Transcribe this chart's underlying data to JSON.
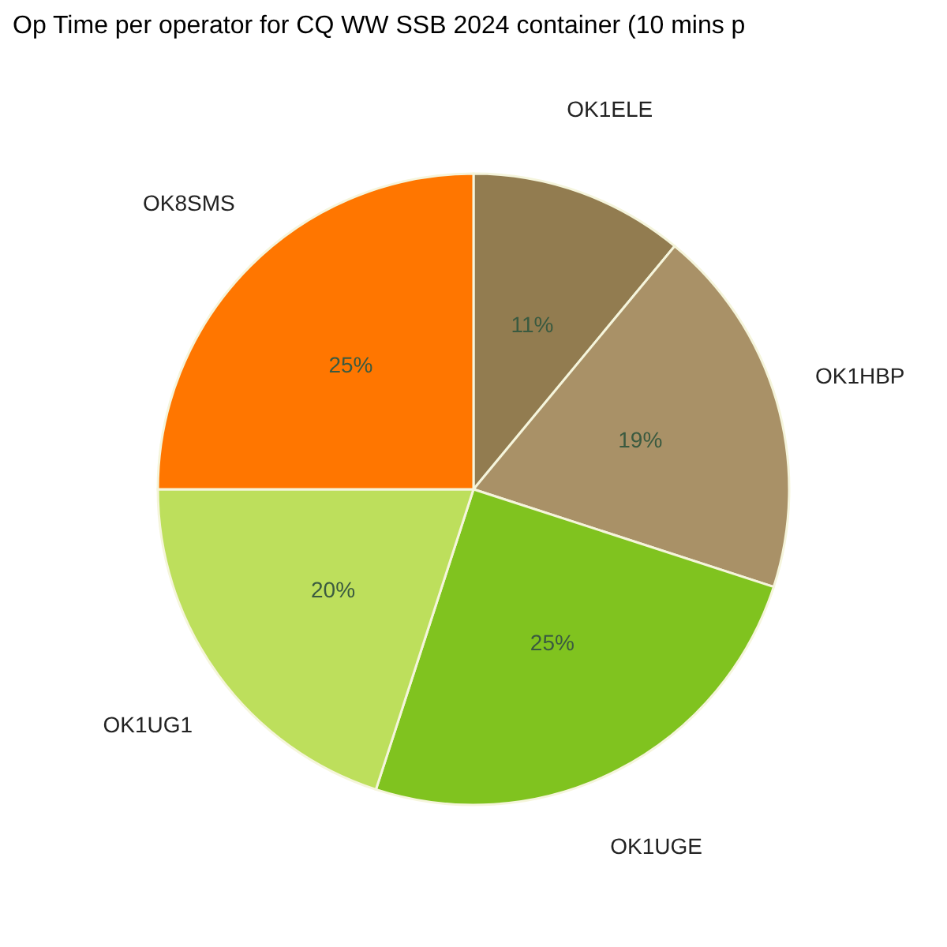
{
  "chart_data": {
    "type": "pie",
    "title": "Op Time per operator for CQ WW SSB 2024 container (10 mins p",
    "categories": [
      "OK1ELE",
      "OK1HBP",
      "OK1UGE",
      "OK1UG1",
      "OK8SMS"
    ],
    "values": [
      11,
      19,
      25,
      20,
      25
    ],
    "colors": [
      "#927c50",
      "#a99167",
      "#80c31f",
      "#bddf5c",
      "#ff7600"
    ],
    "value_labels": [
      "11%",
      "19%",
      "25%",
      "20%",
      "25%"
    ],
    "legend": false
  }
}
